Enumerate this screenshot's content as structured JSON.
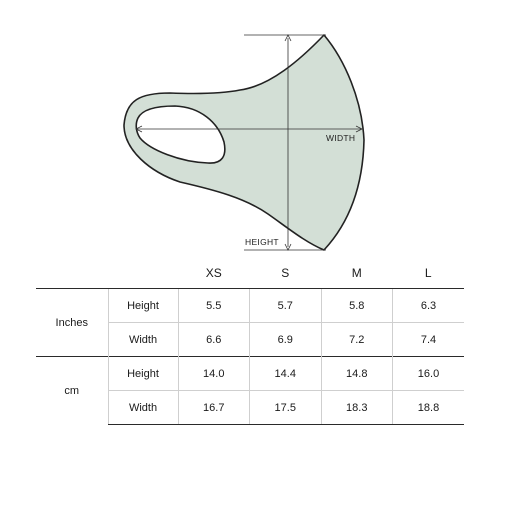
{
  "diagram": {
    "width_label": "WIDTH",
    "height_label": "HEIGHT",
    "mask_fill": "#d3dfd6",
    "outline": "#222222"
  },
  "table": {
    "sizes": [
      "XS",
      "S",
      "M",
      "L"
    ],
    "groups": [
      {
        "unit": "Inches",
        "rows": [
          {
            "measure": "Height",
            "values": [
              "5.5",
              "5.7",
              "5.8",
              "6.3"
            ]
          },
          {
            "measure": "Width",
            "values": [
              "6.6",
              "6.9",
              "7.2",
              "7.4"
            ]
          }
        ]
      },
      {
        "unit": "cm",
        "rows": [
          {
            "measure": "Height",
            "values": [
              "14.0",
              "14.4",
              "14.8",
              "16.0"
            ]
          },
          {
            "measure": "Width",
            "values": [
              "16.7",
              "17.5",
              "18.3",
              "18.8"
            ]
          }
        ]
      }
    ]
  }
}
